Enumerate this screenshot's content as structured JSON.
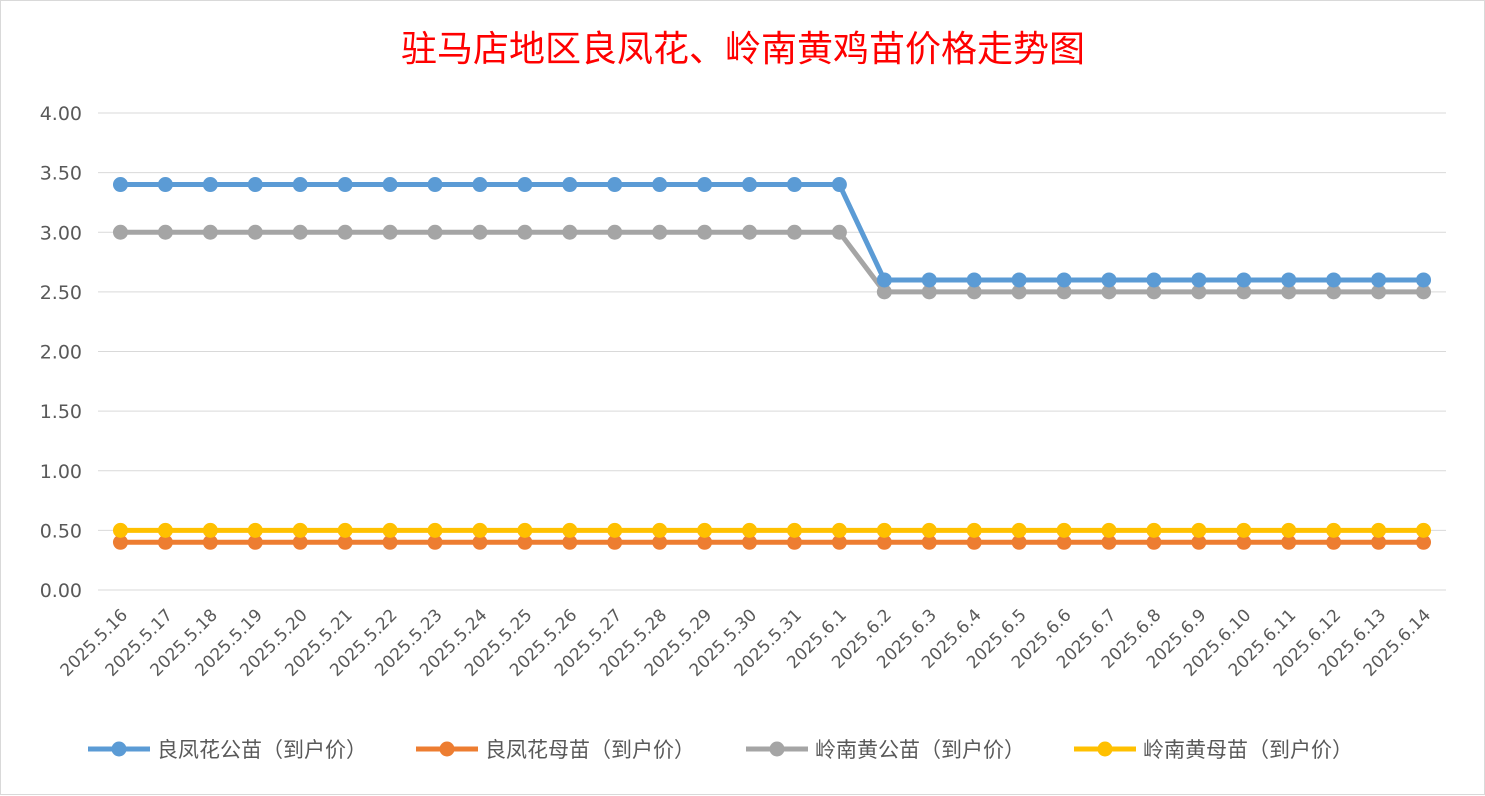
{
  "chart_data": {
    "type": "line",
    "title": "驻马店地区良凤花、岭南黄鸡苗价格走势图",
    "xlabel": "",
    "ylabel": "",
    "ylim": [
      0,
      4
    ],
    "yticks": [
      "0.00",
      "0.50",
      "1.00",
      "1.50",
      "2.00",
      "2.50",
      "3.00",
      "3.50",
      "4.00"
    ],
    "grid": true,
    "legend_position": "bottom",
    "categories": [
      "2025.5.16",
      "2025.5.17",
      "2025.5.18",
      "2025.5.19",
      "2025.5.20",
      "2025.5.21",
      "2025.5.22",
      "2025.5.23",
      "2025.5.24",
      "2025.5.25",
      "2025.5.26",
      "2025.5.27",
      "2025.5.28",
      "2025.5.29",
      "2025.5.30",
      "2025.5.31",
      "2025.6.1",
      "2025.6.2",
      "2025.6.3",
      "2025.6.4",
      "2025.6.5",
      "2025.6.6",
      "2025.6.7",
      "2025.6.8",
      "2025.6.9",
      "2025.6.10",
      "2025.6.11",
      "2025.6.12",
      "2025.6.13",
      "2025.6.14"
    ],
    "series": [
      {
        "name": "良凤花公苗（到户价）",
        "color": "#5b9bd5",
        "values": [
          3.4,
          3.4,
          3.4,
          3.4,
          3.4,
          3.4,
          3.4,
          3.4,
          3.4,
          3.4,
          3.4,
          3.4,
          3.4,
          3.4,
          3.4,
          3.4,
          3.4,
          2.6,
          2.6,
          2.6,
          2.6,
          2.6,
          2.6,
          2.6,
          2.6,
          2.6,
          2.6,
          2.6,
          2.6,
          2.6
        ]
      },
      {
        "name": "良凤花母苗（到户价）",
        "color": "#ed7d31",
        "values": [
          0.4,
          0.4,
          0.4,
          0.4,
          0.4,
          0.4,
          0.4,
          0.4,
          0.4,
          0.4,
          0.4,
          0.4,
          0.4,
          0.4,
          0.4,
          0.4,
          0.4,
          0.4,
          0.4,
          0.4,
          0.4,
          0.4,
          0.4,
          0.4,
          0.4,
          0.4,
          0.4,
          0.4,
          0.4,
          0.4
        ]
      },
      {
        "name": "岭南黄公苗（到户价）",
        "color": "#a5a5a5",
        "values": [
          3.0,
          3.0,
          3.0,
          3.0,
          3.0,
          3.0,
          3.0,
          3.0,
          3.0,
          3.0,
          3.0,
          3.0,
          3.0,
          3.0,
          3.0,
          3.0,
          3.0,
          2.5,
          2.5,
          2.5,
          2.5,
          2.5,
          2.5,
          2.5,
          2.5,
          2.5,
          2.5,
          2.5,
          2.5,
          2.5
        ]
      },
      {
        "name": "岭南黄母苗（到户价）",
        "color": "#ffc000",
        "values": [
          0.5,
          0.5,
          0.5,
          0.5,
          0.5,
          0.5,
          0.5,
          0.5,
          0.5,
          0.5,
          0.5,
          0.5,
          0.5,
          0.5,
          0.5,
          0.5,
          0.5,
          0.5,
          0.5,
          0.5,
          0.5,
          0.5,
          0.5,
          0.5,
          0.5,
          0.5,
          0.5,
          0.5,
          0.5,
          0.5
        ]
      }
    ]
  }
}
